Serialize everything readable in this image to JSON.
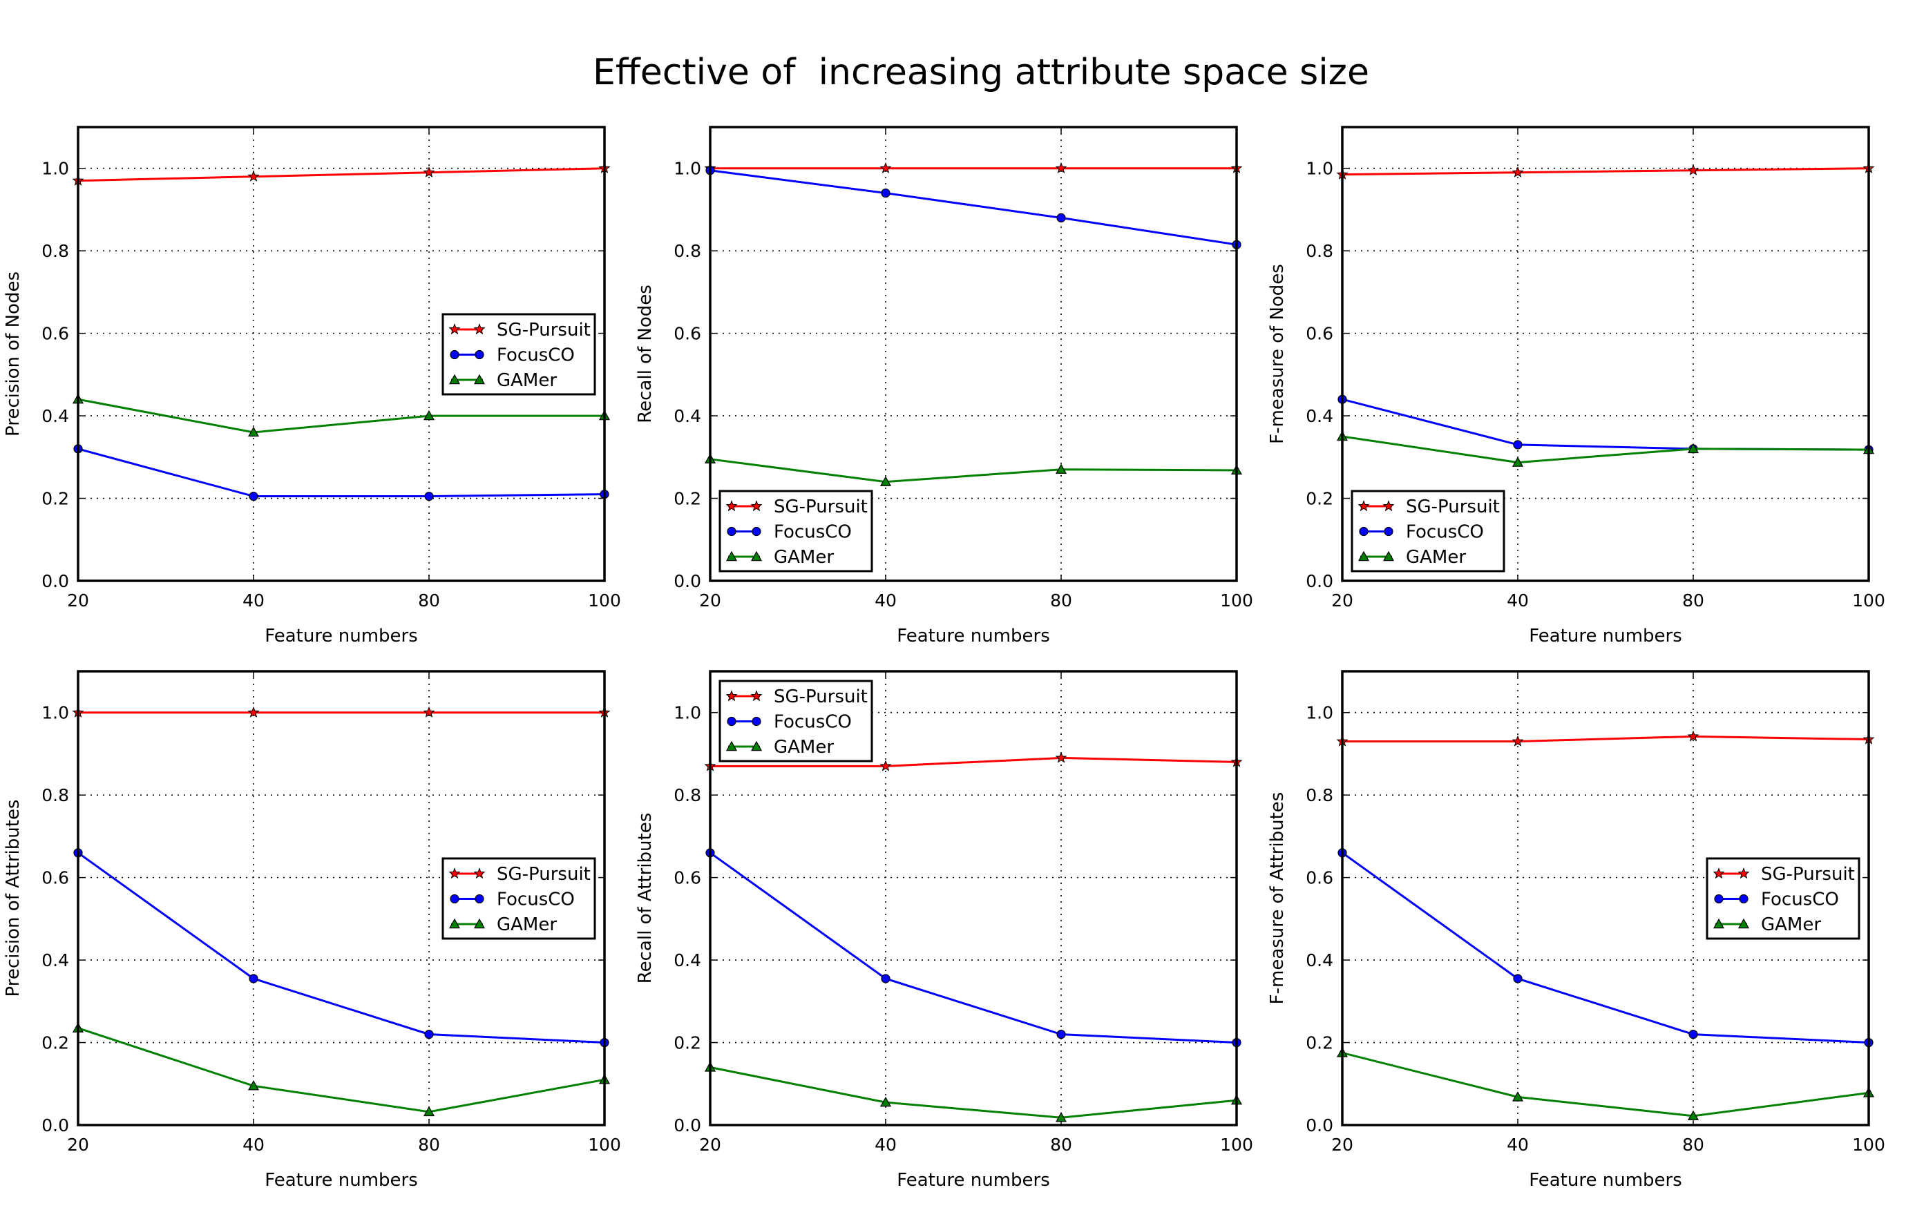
{
  "figure": {
    "title": "Effective of  increasing attribute space size"
  },
  "chart_data": [
    {
      "type": "line",
      "xlabel": "Feature numbers",
      "ylabel": "Precision of Nodes",
      "categories": [
        "20",
        "40",
        "80",
        "100"
      ],
      "ylim": [
        0,
        1.1
      ],
      "yticks": [
        "0.0",
        "0.2",
        "0.4",
        "0.6",
        "0.8",
        "1.0"
      ],
      "grid": true,
      "legend": "center-right",
      "series": [
        {
          "name": "SG-Pursuit",
          "values": [
            0.97,
            0.98,
            0.99,
            1.0
          ]
        },
        {
          "name": "FocusCO",
          "values": [
            0.32,
            0.205,
            0.205,
            0.21
          ]
        },
        {
          "name": "GAMer",
          "values": [
            0.44,
            0.36,
            0.4,
            0.4
          ]
        }
      ]
    },
    {
      "type": "line",
      "xlabel": "Feature numbers",
      "ylabel": "Recall of Nodes",
      "categories": [
        "20",
        "40",
        "80",
        "100"
      ],
      "ylim": [
        0,
        1.1
      ],
      "yticks": [
        "0.0",
        "0.2",
        "0.4",
        "0.6",
        "0.8",
        "1.0"
      ],
      "grid": true,
      "legend": "lower-left",
      "series": [
        {
          "name": "SG-Pursuit",
          "values": [
            1.0,
            1.0,
            1.0,
            1.0
          ]
        },
        {
          "name": "FocusCO",
          "values": [
            0.995,
            0.94,
            0.88,
            0.815
          ]
        },
        {
          "name": "GAMer",
          "values": [
            0.295,
            0.24,
            0.27,
            0.268
          ]
        }
      ]
    },
    {
      "type": "line",
      "xlabel": "Feature numbers",
      "ylabel": "F-measure of Nodes",
      "categories": [
        "20",
        "40",
        "80",
        "100"
      ],
      "ylim": [
        0,
        1.1
      ],
      "yticks": [
        "0.0",
        "0.2",
        "0.4",
        "0.6",
        "0.8",
        "1.0"
      ],
      "grid": true,
      "legend": "lower-left",
      "series": [
        {
          "name": "SG-Pursuit",
          "values": [
            0.985,
            0.99,
            0.995,
            1.0
          ]
        },
        {
          "name": "FocusCO",
          "values": [
            0.44,
            0.33,
            0.32,
            0.318
          ]
        },
        {
          "name": "GAMer",
          "values": [
            0.35,
            0.287,
            0.32,
            0.318
          ]
        }
      ]
    },
    {
      "type": "line",
      "xlabel": "Feature numbers",
      "ylabel": "Precision of Attributes",
      "categories": [
        "20",
        "40",
        "80",
        "100"
      ],
      "ylim": [
        0,
        1.1
      ],
      "yticks": [
        "0.0",
        "0.2",
        "0.4",
        "0.6",
        "0.8",
        "1.0"
      ],
      "grid": true,
      "legend": "center-right",
      "series": [
        {
          "name": "SG-Pursuit",
          "values": [
            1.0,
            1.0,
            1.0,
            1.0
          ]
        },
        {
          "name": "FocusCO",
          "values": [
            0.66,
            0.355,
            0.22,
            0.2
          ]
        },
        {
          "name": "GAMer",
          "values": [
            0.235,
            0.095,
            0.032,
            0.11
          ]
        }
      ]
    },
    {
      "type": "line",
      "xlabel": "Feature numbers",
      "ylabel": "Recall of Attributes",
      "categories": [
        "20",
        "40",
        "80",
        "100"
      ],
      "ylim": [
        0,
        1.1
      ],
      "yticks": [
        "0.0",
        "0.2",
        "0.4",
        "0.6",
        "0.8",
        "1.0"
      ],
      "grid": true,
      "legend": "upper-left",
      "series": [
        {
          "name": "SG-Pursuit",
          "values": [
            0.87,
            0.87,
            0.89,
            0.88
          ]
        },
        {
          "name": "FocusCO",
          "values": [
            0.66,
            0.355,
            0.22,
            0.2
          ]
        },
        {
          "name": "GAMer",
          "values": [
            0.14,
            0.055,
            0.018,
            0.06
          ]
        }
      ]
    },
    {
      "type": "line",
      "xlabel": "Feature numbers",
      "ylabel": "F-measure of Attributes",
      "categories": [
        "20",
        "40",
        "80",
        "100"
      ],
      "ylim": [
        0,
        1.1
      ],
      "yticks": [
        "0.0",
        "0.2",
        "0.4",
        "0.6",
        "0.8",
        "1.0"
      ],
      "grid": true,
      "legend": "center-right",
      "series": [
        {
          "name": "SG-Pursuit",
          "values": [
            0.93,
            0.93,
            0.942,
            0.935
          ]
        },
        {
          "name": "FocusCO",
          "values": [
            0.66,
            0.355,
            0.22,
            0.2
          ]
        },
        {
          "name": "GAMer",
          "values": [
            0.175,
            0.068,
            0.022,
            0.078
          ]
        }
      ]
    }
  ],
  "style": {
    "series_colors": {
      "SG-Pursuit": "#ff0000",
      "FocusCO": "#0000ff",
      "GAMer": "#008000"
    },
    "series_markers": {
      "SG-Pursuit": "star",
      "FocusCO": "circle",
      "GAMer": "triangle"
    }
  }
}
